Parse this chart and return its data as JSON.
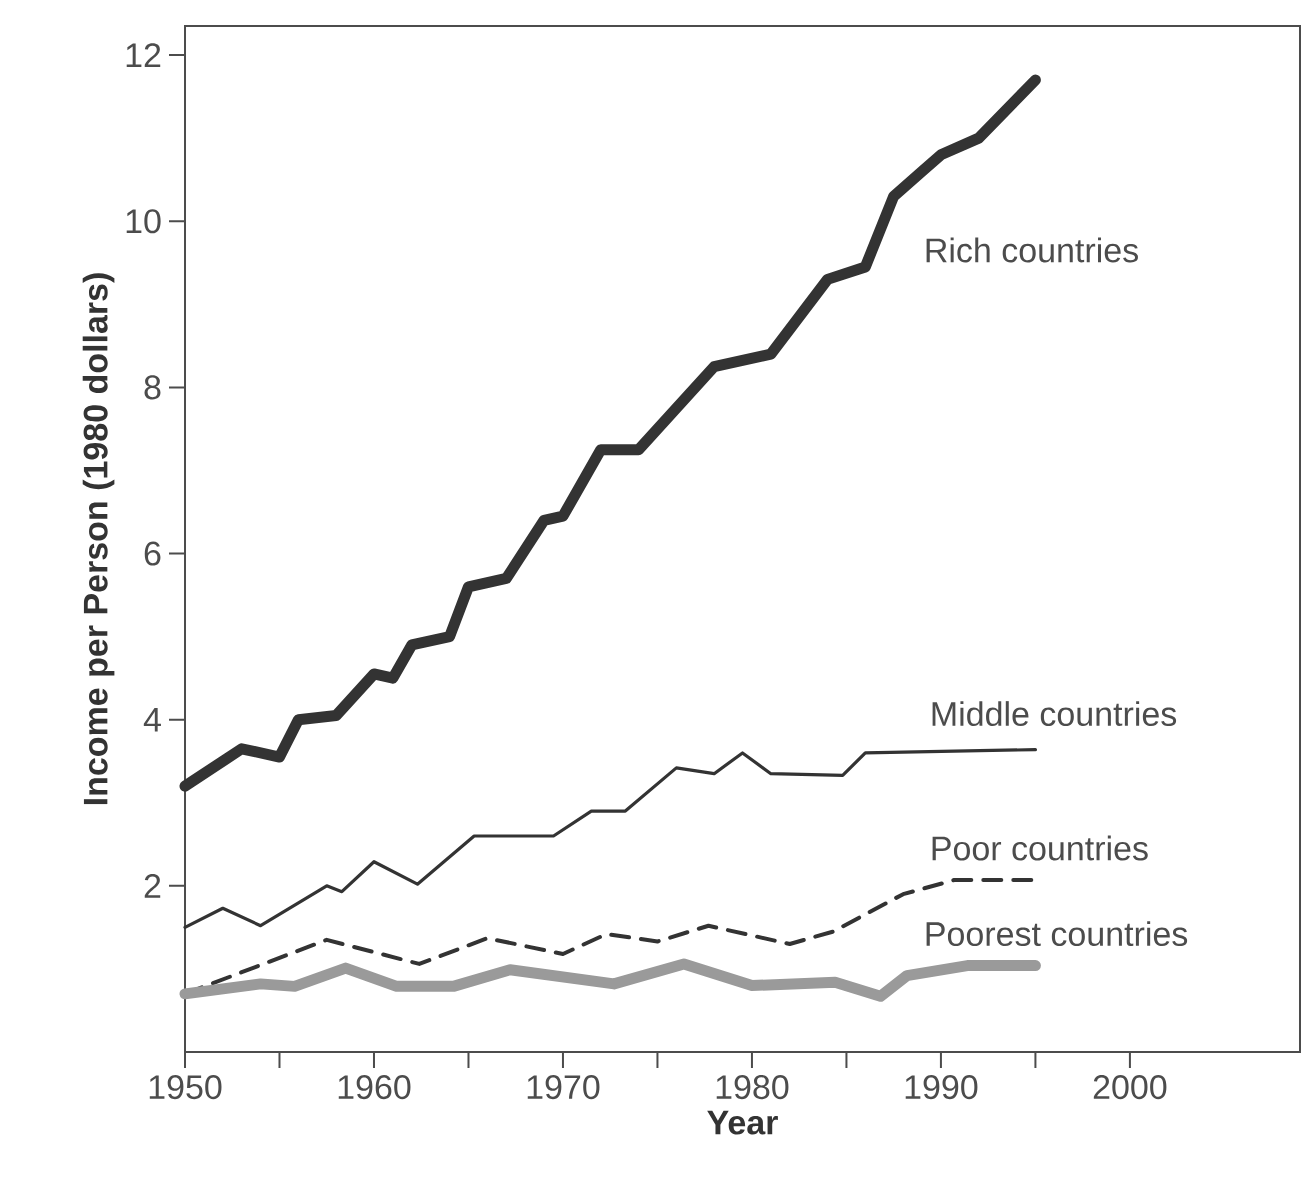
{
  "chart_data": {
    "type": "line",
    "xlabel": "Year",
    "ylabel": "Income per Person (1980 dollars)",
    "xlim": [
      1950,
      2009
    ],
    "ylim": [
      0,
      12.35
    ],
    "xticks": [
      1950,
      {
        "value": 1955,
        "label": null
      },
      1960,
      {
        "value": 1965,
        "label": null
      },
      1970,
      {
        "value": 1975,
        "label": null
      },
      1980,
      {
        "value": 1985,
        "label": null
      },
      1990,
      {
        "value": 1995,
        "label": null
      },
      2000
    ],
    "yticks": [
      2,
      4,
      6,
      8,
      10,
      12
    ],
    "grid": false,
    "marker": "none",
    "series": [
      {
        "name": "Rich countries",
        "color": "#333333",
        "line_style": "solid",
        "x": [
          1950,
          1953,
          1955,
          1956,
          1958,
          1960,
          1961,
          1962,
          1964,
          1965,
          1967,
          1969,
          1970,
          1972,
          1974,
          1978,
          1981,
          1984,
          1986,
          1987.5,
          1989,
          1990,
          1992,
          1995
        ],
        "values": [
          3.2,
          3.65,
          3.55,
          4.0,
          4.05,
          4.55,
          4.5,
          4.9,
          5.0,
          5.6,
          5.7,
          6.4,
          6.45,
          7.25,
          7.25,
          8.25,
          8.4,
          9.3,
          9.45,
          10.3,
          10.6,
          10.8,
          11.0,
          11.7
        ]
      },
      {
        "name": "Middle countries",
        "color": "#333333",
        "line_style": "solid",
        "x": [
          1950,
          1952,
          1954,
          1957.5,
          1958.3,
          1960,
          1962.3,
          1965.3,
          1969.5,
          1971.5,
          1973.3,
          1976,
          1978,
          1979.5,
          1981,
          1984.8,
          1986,
          1995
        ],
        "values": [
          1.5,
          1.73,
          1.52,
          2.0,
          1.93,
          2.29,
          2.02,
          2.6,
          2.6,
          2.9,
          2.9,
          3.42,
          3.35,
          3.6,
          3.35,
          3.33,
          3.6,
          3.64
        ]
      },
      {
        "name": "Poor countries",
        "color": "#333333",
        "line_style": "dashed",
        "x": [
          1950,
          1957.5,
          1962.4,
          1966,
          1970,
          1972.3,
          1975,
          1977.7,
          1982,
          1984.3,
          1988,
          1990.7,
          1995
        ],
        "values": [
          0.7,
          1.35,
          1.06,
          1.37,
          1.18,
          1.42,
          1.33,
          1.52,
          1.3,
          1.45,
          1.9,
          2.07,
          2.07
        ]
      },
      {
        "name": "Poorest countries",
        "color": "#9a9a9a",
        "line_style": "solid",
        "x": [
          1950,
          1954,
          1955.8,
          1958.5,
          1961.2,
          1964.2,
          1967.2,
          1972.7,
          1976.4,
          1980,
          1984.4,
          1986.8,
          1988.2,
          1991.4,
          1995
        ],
        "values": [
          0.7,
          0.82,
          0.79,
          1.01,
          0.79,
          0.79,
          0.99,
          0.82,
          1.06,
          0.8,
          0.84,
          0.67,
          0.92,
          1.04,
          1.04
        ]
      }
    ]
  }
}
